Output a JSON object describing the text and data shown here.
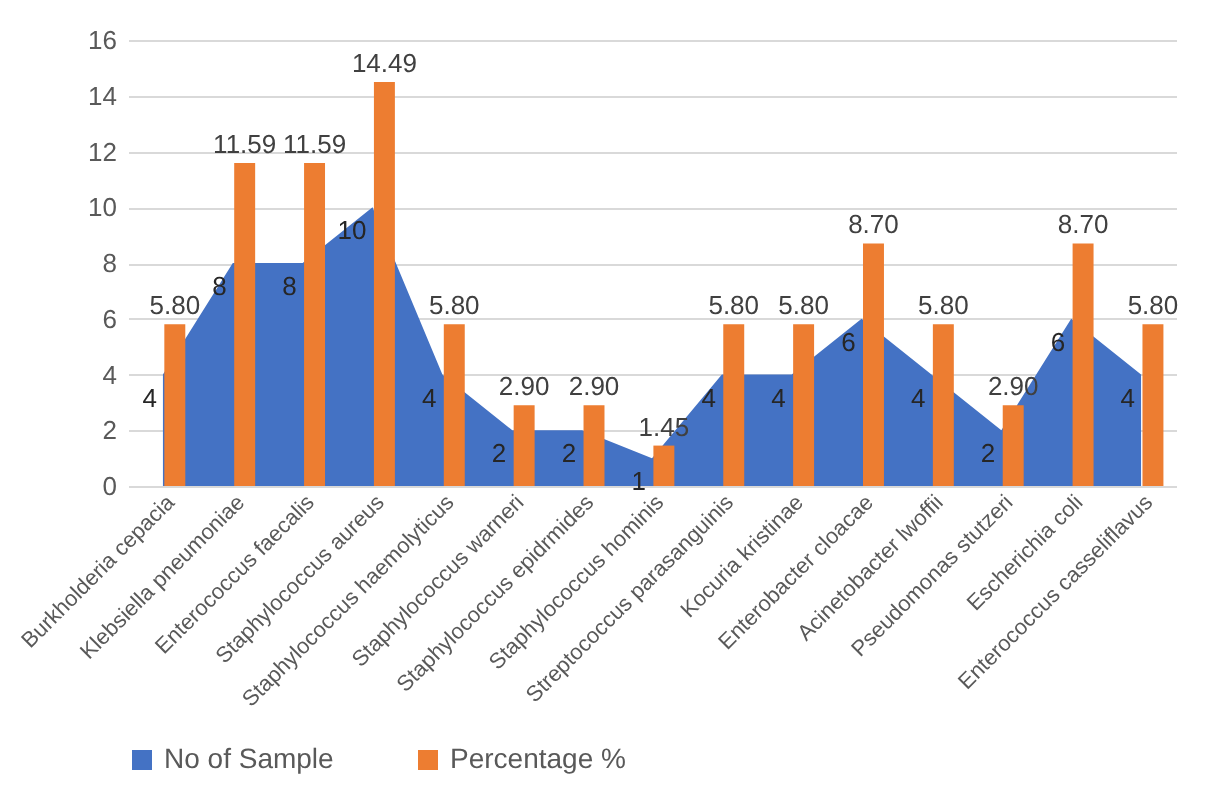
{
  "chart_data": {
    "type": "bar",
    "categories": [
      "Burkholderia cepacia",
      "Klebsiella pneumoniae",
      "Enterococcus faecalis",
      "Staphylococcus aureus",
      "Staphylococcus haemolyticus",
      "Staphylococcus warneri",
      "Staphylococcus epidrmides",
      "Staphylococcus hominis",
      "Streptococcus parasanguinis",
      "Kocuria kristinae",
      "Enterobacter cloacae",
      "Acinetobacter lwoffii",
      "Pseudomonas stutzeri",
      "Escherichia coli",
      "Enterococcus casseliflavus"
    ],
    "series": [
      {
        "name": "No of Sample",
        "type": "area",
        "color": "#4472c4",
        "values": [
          4,
          8,
          8,
          10,
          4,
          2,
          2,
          1,
          4,
          4,
          6,
          4,
          2,
          6,
          4
        ],
        "value_labels": [
          "4",
          "8",
          "8",
          "10",
          "4",
          "2",
          "2",
          "1",
          "4",
          "4",
          "6",
          "4",
          "2",
          "6",
          "4"
        ]
      },
      {
        "name": "Percentage %",
        "color": "#ed7d31",
        "values": [
          5.8,
          11.59,
          11.59,
          14.49,
          5.8,
          2.9,
          2.9,
          1.45,
          5.8,
          5.8,
          8.7,
          5.8,
          2.9,
          8.7,
          5.8
        ],
        "value_labels": [
          "5.80",
          "11.59",
          "11.59",
          "14.49",
          "5.80",
          "2.90",
          "2.90",
          "1.45",
          "5.80",
          "5.80",
          "8.70",
          "5.80",
          "2.90",
          "8.70",
          "5.80"
        ]
      }
    ],
    "ylim": [
      0,
      16
    ],
    "yticks": [
      0,
      2,
      4,
      6,
      8,
      10,
      12,
      14,
      16
    ],
    "grid": "y",
    "legend": "bottom"
  }
}
